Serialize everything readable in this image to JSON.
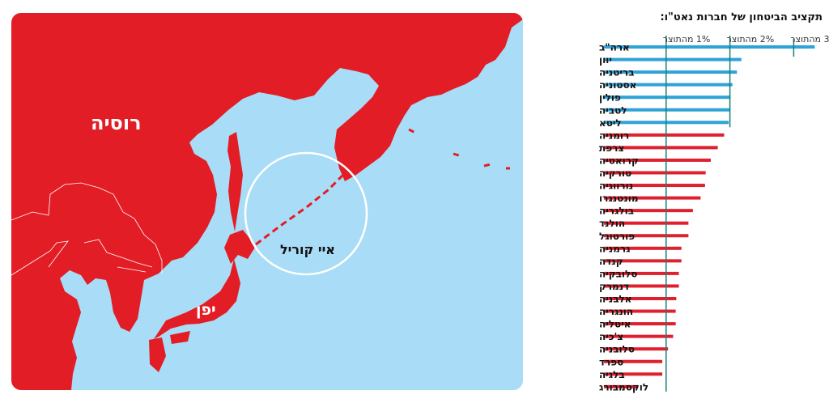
{
  "map": {
    "labels": {
      "russia": "רוסיה",
      "japan": "יפן",
      "kurils": "איי קוריל"
    },
    "colors": {
      "land": "#e31d25",
      "sea": "#a9dcf6",
      "border": "#ffffff"
    }
  },
  "chart_data": {
    "type": "bar",
    "orientation": "horizontal",
    "title": "תקציב הביטחון של חברות נאט\"ו:",
    "reference_lines": [
      {
        "value": 1,
        "label": "1% מהתוצר"
      },
      {
        "value": 2,
        "label": "2% מהתוצר"
      },
      {
        "value": 3,
        "label": "3% מהתוצר"
      }
    ],
    "unit": "% מהתוצר",
    "xlim": [
      0,
      3.4
    ],
    "colors": {
      "above_2": "#2ea3d7",
      "below_2": "#e0202e",
      "reference": "#17807a"
    },
    "categories": [
      "ארה\"ב",
      "יוון",
      "בריטניה",
      "אסטוניה",
      "פולין",
      "לטביה",
      "ליטא",
      "רומניה",
      "צרפת",
      "קרואטיה",
      "טורקיה",
      "נורווגיה",
      "מונטנגרו",
      "בולגריה",
      "הולנד",
      "פורטוגל",
      "גרמניה",
      "קנדה",
      "סלובקיה",
      "דנמרק",
      "אלבניה",
      "הונגריה",
      "איטליה",
      "צ'כיה",
      "סלובניה",
      "ספרד",
      "בלגיה",
      "לוקסמבורג"
    ],
    "values": [
      3.33,
      2.18,
      2.11,
      2.04,
      2.01,
      2.0,
      1.98,
      1.91,
      1.81,
      1.7,
      1.62,
      1.61,
      1.54,
      1.42,
      1.35,
      1.35,
      1.24,
      1.24,
      1.2,
      1.2,
      1.16,
      1.15,
      1.15,
      1.11,
      1.03,
      0.94,
      0.94,
      0.56
    ]
  }
}
